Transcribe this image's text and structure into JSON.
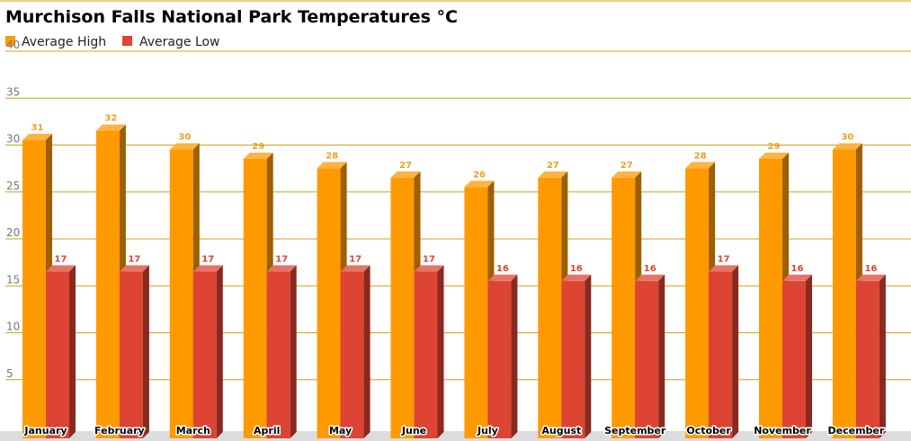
{
  "chart_data": {
    "type": "bar",
    "title": "Murchison Falls National Park Temperatures °C",
    "categories": [
      "January",
      "February",
      "March",
      "April",
      "May",
      "June",
      "July",
      "August",
      "September",
      "October",
      "November",
      "December"
    ],
    "series": [
      {
        "name": "Average High",
        "values": [
          31,
          32,
          30,
          29,
          28,
          27,
          26,
          27,
          27,
          28,
          29,
          30
        ],
        "color": "#ff9900"
      },
      {
        "name": "Average Low",
        "values": [
          17,
          17,
          17,
          17,
          17,
          17,
          16,
          16,
          16,
          17,
          16,
          16
        ],
        "color": "#dd4433"
      }
    ],
    "ylim": [
      0,
      40
    ],
    "yticks": [
      5,
      10,
      15,
      20,
      25,
      30,
      35,
      40
    ],
    "grid": true,
    "gridline_color": "#d4a017",
    "legend_position": "top-left",
    "style": "3d"
  }
}
